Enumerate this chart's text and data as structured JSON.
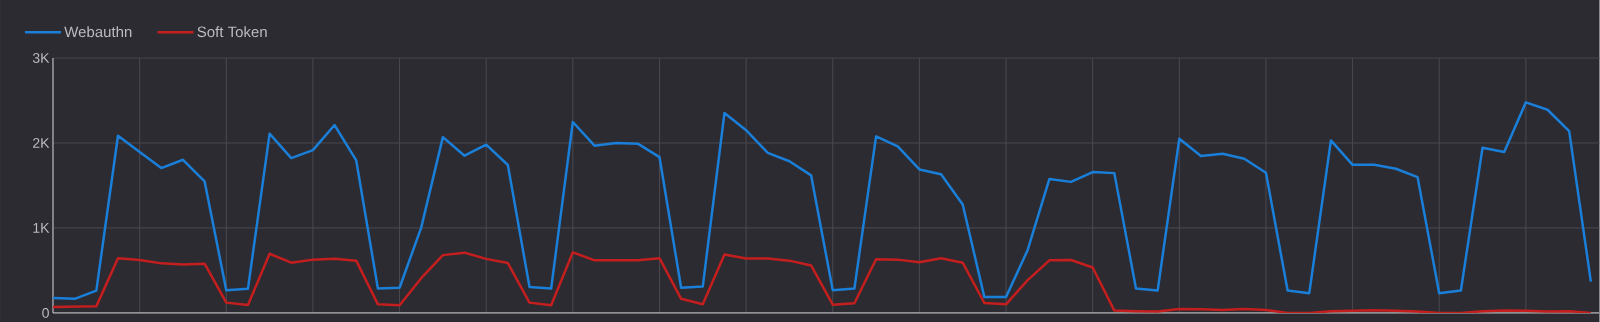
{
  "chart_data": {
    "type": "line",
    "categories": [
      null,
      null,
      null,
      null,
      null,
      null,
      null,
      null,
      null,
      null,
      null,
      null,
      null,
      null,
      null,
      null,
      null,
      null,
      null,
      null,
      null,
      null,
      null,
      null,
      null,
      null,
      null,
      null,
      null,
      null,
      null,
      null,
      null,
      null,
      null,
      null,
      null,
      null,
      null,
      null,
      null,
      null,
      null,
      null,
      null,
      null,
      null,
      null,
      null,
      null,
      null,
      null,
      null,
      null,
      null,
      null,
      null,
      null,
      null,
      null,
      null,
      null,
      null,
      null,
      null,
      null,
      null,
      null,
      null,
      null,
      null,
      null
    ],
    "series": [
      {
        "name": "Webauthn",
        "color": "#1a7fd9",
        "values": [
          174,
          166,
          263,
          2085,
          1895,
          1704,
          1802,
          1547,
          267,
          283,
          2109,
          1822,
          1915,
          2211,
          1794,
          287,
          296,
          1004,
          2069,
          1850,
          1980,
          1741,
          304,
          287,
          2247,
          1968,
          2000,
          1992,
          1834,
          296,
          312,
          2352,
          2150,
          1883,
          1785,
          1619,
          267,
          287,
          2077,
          1960,
          1688,
          1632,
          1275,
          186,
          186,
          741,
          1575,
          1542,
          1658,
          1645,
          287,
          263,
          2050,
          1846,
          1873,
          1814,
          1649,
          263,
          232,
          2030,
          1743,
          1743,
          1696,
          1598,
          232,
          263,
          1944,
          1893,
          2478,
          2391,
          2140,
          369
        ]
      },
      {
        "name": "Soft Token",
        "color": "#c41e1e",
        "values": [
          69,
          73,
          77,
          644,
          623,
          583,
          571,
          579,
          121,
          93,
          696,
          591,
          627,
          636,
          615,
          101,
          89,
          409,
          680,
          709,
          636,
          587,
          121,
          89,
          713,
          619,
          619,
          619,
          644,
          166,
          101,
          688,
          640,
          640,
          615,
          559,
          97,
          113,
          632,
          627,
          595,
          644,
          591,
          117,
          101,
          385,
          619,
          623,
          534,
          27,
          20,
          16,
          47,
          43,
          35,
          47,
          35,
          0,
          0,
          20,
          24,
          31,
          24,
          16,
          0,
          0,
          20,
          27,
          24,
          16,
          20,
          0
        ]
      }
    ],
    "ylim": [
      0,
      3000
    ],
    "yticks": [
      {
        "value": 0,
        "label": "0"
      },
      {
        "value": 1000,
        "label": "1K"
      },
      {
        "value": 2000,
        "label": "2K"
      },
      {
        "value": 3000,
        "label": "3K"
      }
    ],
    "grid": true,
    "legend": "top left",
    "marker": "none",
    "line_style": "solid"
  }
}
